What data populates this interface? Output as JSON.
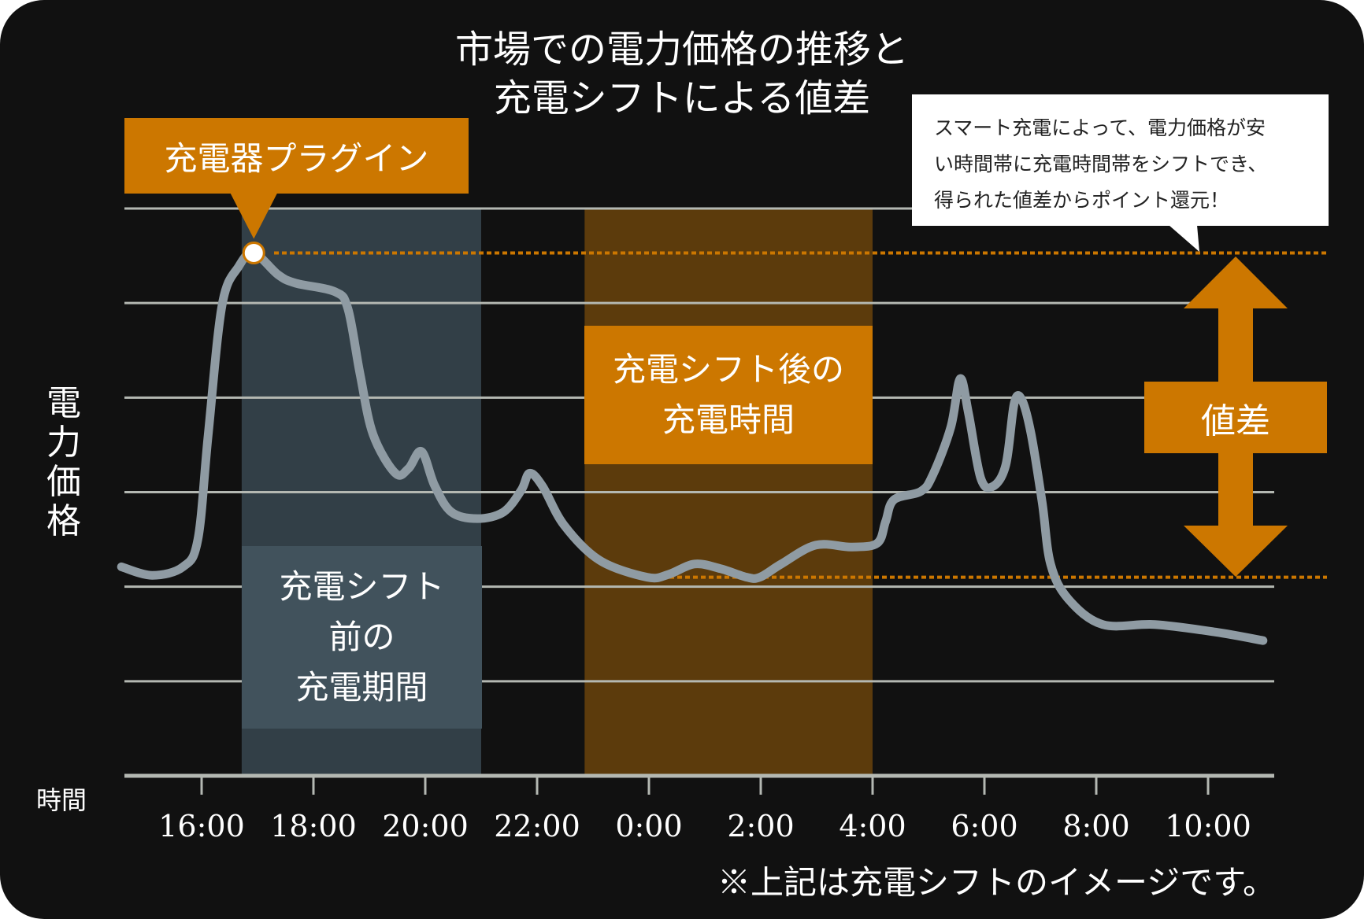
{
  "title_lines": [
    "市場での電力価格の推移と",
    "充電シフトによる値差"
  ],
  "plugin_label": "充電器プラグイン",
  "callout_lines": [
    "スマート充電によって、電力価格が安",
    "い時間帯に充電時間帯をシフトでき、",
    "得られた値差からポイント還元！"
  ],
  "before_label_lines": [
    "充電シフト",
    "前の",
    "充電期間"
  ],
  "after_label_lines": [
    "充電シフト後の",
    "充電時間"
  ],
  "diff_label": "値差",
  "footnote": "※上記は充電シフトのイメージです。",
  "colors": {
    "background": "#111111",
    "accent": "#cc7700",
    "before_band": "#323f47",
    "before_label_bg": "#41525c",
    "after_band": "#5c3b0c",
    "line": "#8f9ba3",
    "grid": "#b4b8b2"
  },
  "chart_data": {
    "type": "line",
    "ylabel": "電力価格",
    "xlabel": "時間",
    "x_ticks": [
      "16:00",
      "18:00",
      "20:00",
      "22:00",
      "0:00",
      "2:00",
      "4:00",
      "6:00",
      "8:00",
      "10:00"
    ],
    "ylim": [
      0,
      6
    ],
    "grid": true,
    "series": [
      {
        "x": [
          "14:34",
          "15:07",
          "15:40",
          "15:56",
          "16:07",
          "16:22",
          "16:40",
          "16:56",
          "17:22",
          "17:41",
          "18:23",
          "18:37",
          "18:50",
          "19:04",
          "19:28",
          "19:42",
          "19:56",
          "20:10",
          "20:28",
          "20:56",
          "21:24",
          "21:43",
          "21:52",
          "22:06",
          "22:29",
          "23:07",
          "23:58",
          "0:21",
          "0:49",
          "1:17",
          "1:45",
          "1:59",
          "2:22",
          "2:59",
          "3:37",
          "4:05",
          "4:14",
          "4:23",
          "4:52",
          "5:05",
          "5:24",
          "5:34",
          "5:43",
          "5:56",
          "6:09",
          "6:23",
          "6:32",
          "6:40",
          "6:50",
          "7:02",
          "7:11",
          "7:30",
          "8:07",
          "9:03",
          "10:08",
          "10:59"
        ],
        "y": [
          2.21,
          2.12,
          2.21,
          2.5,
          3.6,
          4.98,
          5.39,
          5.53,
          5.3,
          5.21,
          5.12,
          4.94,
          4.25,
          3.61,
          3.2,
          3.25,
          3.43,
          3.07,
          2.79,
          2.72,
          2.79,
          3.02,
          3.2,
          3.06,
          2.65,
          2.28,
          2.1,
          2.13,
          2.24,
          2.19,
          2.1,
          2.1,
          2.24,
          2.44,
          2.42,
          2.46,
          2.69,
          2.92,
          3.01,
          3.19,
          3.69,
          4.2,
          3.83,
          3.15,
          3.06,
          3.29,
          3.94,
          3.98,
          3.62,
          2.89,
          2.24,
          1.87,
          1.6,
          1.6,
          1.52,
          1.43
        ]
      }
    ],
    "plugin_point": {
      "x": "16:56",
      "y": 5.53
    },
    "before_band": [
      "16:43",
      "21:00"
    ],
    "after_band": [
      "22:51",
      "4:00"
    ],
    "reference_levels": [
      5.53,
      2.1
    ]
  }
}
